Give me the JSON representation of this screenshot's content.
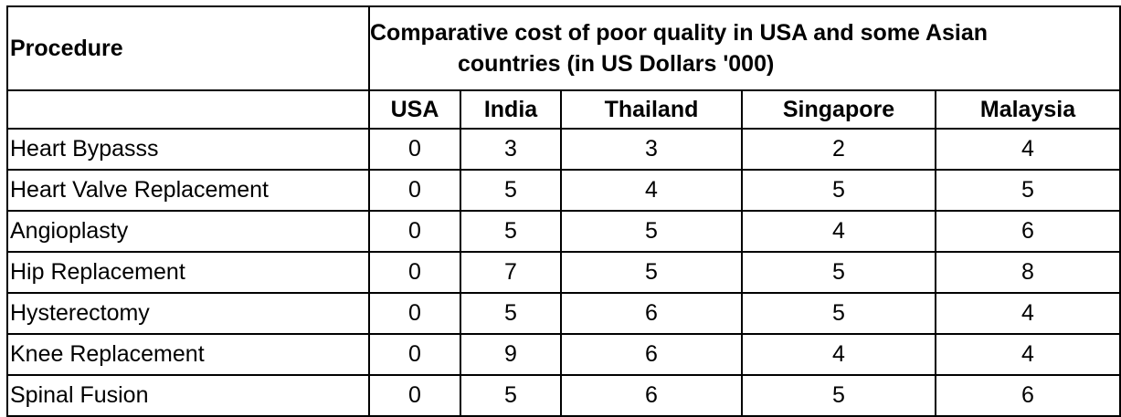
{
  "table": {
    "procedure_header": "Procedure",
    "caption_line1": "Comparative cost of poor quality in USA and some Asian",
    "caption_line2": "countries (in US Dollars '000)",
    "columns": [
      "USA",
      "India",
      "Thailand",
      "Singapore",
      "Malaysia"
    ],
    "rows": [
      {
        "procedure": "Heart Bypasss",
        "values": [
          "0",
          "3",
          "3",
          "2",
          "4"
        ]
      },
      {
        "procedure": "Heart Valve Replacement",
        "values": [
          "0",
          "5",
          "4",
          "5",
          "5"
        ]
      },
      {
        "procedure": "Angioplasty",
        "values": [
          "0",
          "5",
          "5",
          "4",
          "6"
        ]
      },
      {
        "procedure": "Hip Replacement",
        "values": [
          "0",
          "7",
          "5",
          "5",
          "8"
        ]
      },
      {
        "procedure": "Hysterectomy",
        "values": [
          "0",
          "5",
          "6",
          "5",
          "4"
        ]
      },
      {
        "procedure": "Knee Replacement",
        "values": [
          "0",
          "9",
          "6",
          "4",
          "4"
        ]
      },
      {
        "procedure": "Spinal Fusion",
        "values": [
          "0",
          "5",
          "6",
          "5",
          "6"
        ]
      }
    ]
  }
}
